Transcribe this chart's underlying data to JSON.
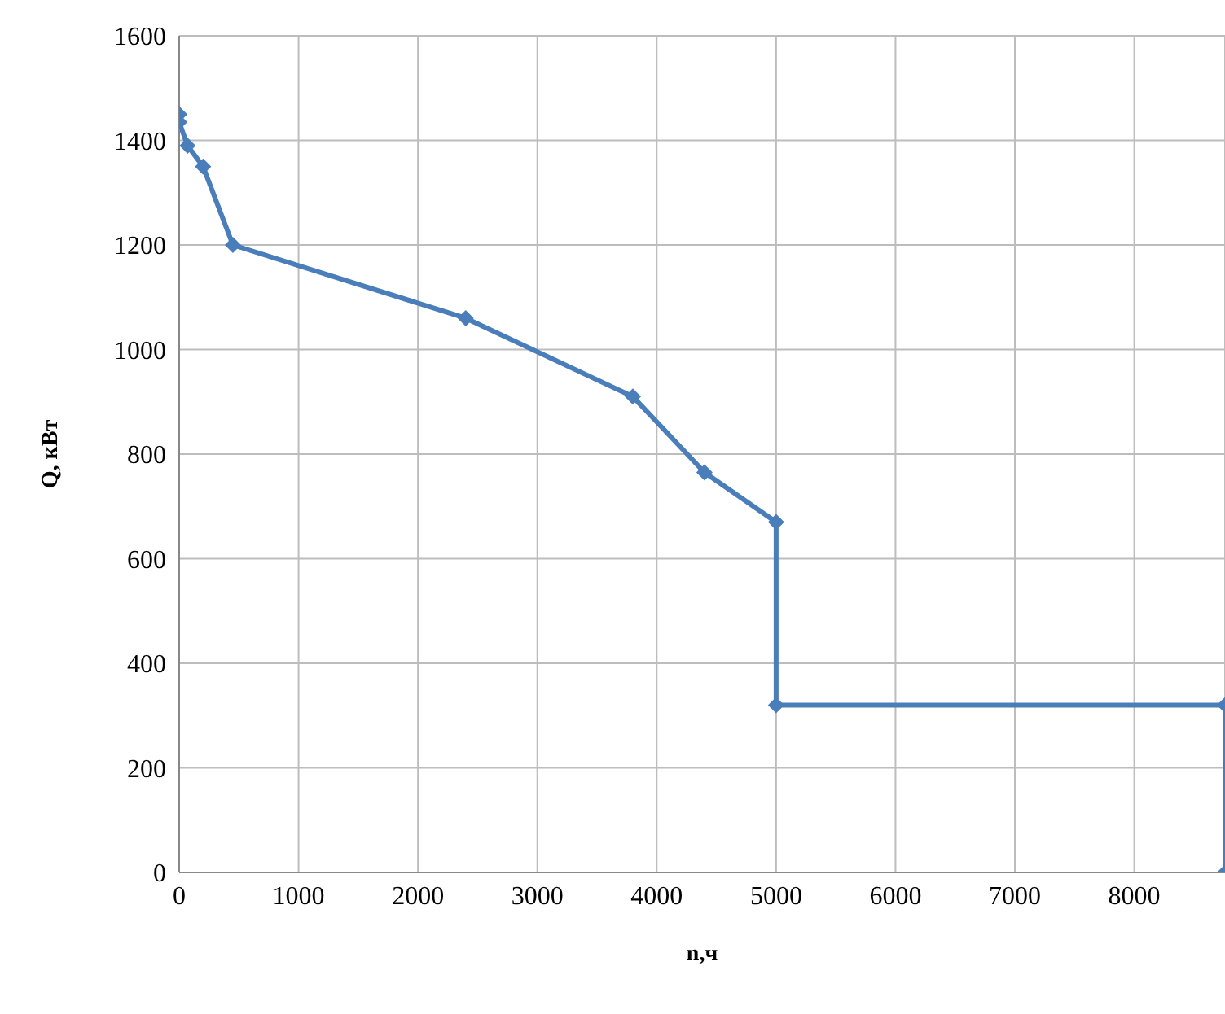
{
  "chart_data": {
    "type": "line",
    "xlabel": "n,ч",
    "ylabel": "Q, кВт",
    "x": [
      0,
      0,
      70,
      200,
      450,
      2400,
      3800,
      4400,
      5000,
      5000,
      8760,
      8760
    ],
    "series": [
      {
        "color": "#4a7ebb",
        "values": [
          1450,
          1435,
          1390,
          1350,
          1200,
          1060,
          910,
          765,
          670,
          320,
          320,
          0
        ]
      }
    ],
    "xlim": [
      0,
      8760
    ],
    "xticks": [
      0,
      1000,
      2000,
      3000,
      4000,
      5000,
      6000,
      7000,
      8000
    ],
    "ylim": [
      0,
      1600
    ],
    "yticks": [
      0,
      200,
      400,
      600,
      800,
      1000,
      1200,
      1400,
      1600
    ],
    "grid": true,
    "legend": false,
    "marker": "diamond",
    "line_style": "solid"
  }
}
